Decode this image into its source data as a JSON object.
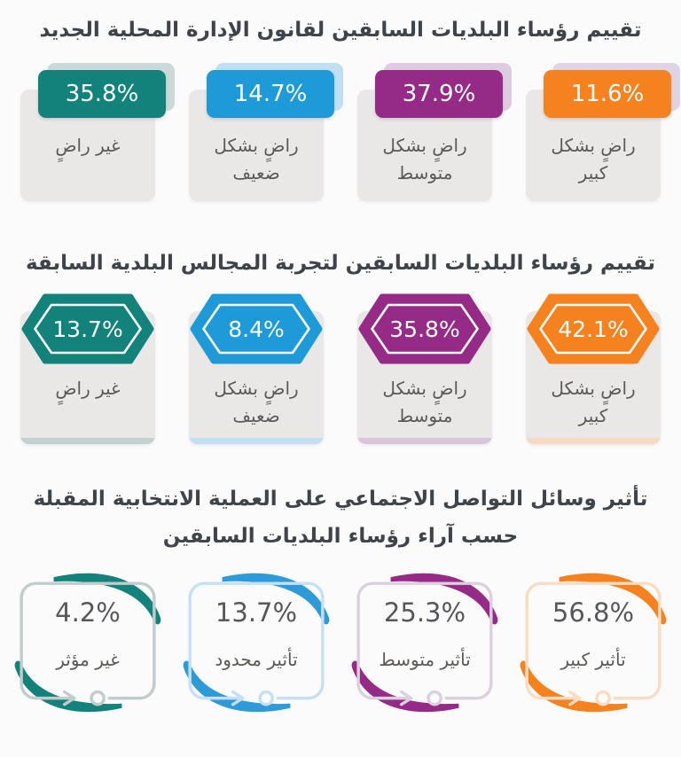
{
  "page": {
    "background": "#FBFBFC",
    "title_color": "#3E4449",
    "card_color": "#E9E8E6",
    "label_color": "#5C5A56",
    "value_text_color_row3": "#55575A",
    "icons": [
      "hexagon-badge-icon",
      "arrow-right-icon",
      "circle-node-icon",
      "corner-swoosh-icon"
    ]
  },
  "chart_data": [
    {
      "type": "bar",
      "style": "rounded-badge-cards",
      "title": "تقييم رؤساء البلديات السابقين لقانون الإدارة المحلية الجديد",
      "categories": [
        "راضٍ بشكل كبير",
        "راضٍ بشكل متوسط",
        "راضٍ بشكل ضعيف",
        "غير راضٍ"
      ],
      "values": [
        11.6,
        37.9,
        14.7,
        35.8
      ],
      "unit": "%"
    },
    {
      "type": "bar",
      "style": "hexagon-cards",
      "title": "تقييم رؤساء البلديات السابقين لتجربة المجالس البلدية السابقة",
      "categories": [
        "راضٍ بشكل كبير",
        "راضٍ بشكل متوسط",
        "راضٍ بشكل ضعيف",
        "غير راضٍ"
      ],
      "values": [
        42.1,
        35.8,
        8.4,
        13.7
      ],
      "unit": "%"
    },
    {
      "type": "bar",
      "style": "swoosh-frame-cards",
      "title": "تأثير وسائل التواصل الاجتماعي على العملية الانتخابية المقبلة حسب آراء رؤساء البلديات السابقين",
      "categories": [
        "تأثير كبير",
        "تأثير متوسط",
        "تأثير محدود",
        "غير مؤثر"
      ],
      "values": [
        56.8,
        25.3,
        13.7,
        4.2
      ],
      "unit": "%"
    }
  ],
  "sections": [
    {
      "title": "تقييم رؤساء البلديات السابقين لقانون الإدارة المحلية الجديد",
      "style": "badge",
      "items": [
        {
          "value": "11.6%",
          "label": "راضٍ بشكل كبير",
          "color": "#F5821F",
          "tint": "#DCCFE1"
        },
        {
          "value": "37.9%",
          "label": "راضٍ بشكل متوسط",
          "color": "#962B87",
          "tint": "#D9C6DD"
        },
        {
          "value": "14.7%",
          "label": "راضٍ بشكل ضعيف",
          "color": "#1D9AD7",
          "tint": "#B9DCF2"
        },
        {
          "value": "35.8%",
          "label": "غير راضٍ",
          "color": "#12827A",
          "tint": "#C6D5D4"
        }
      ]
    },
    {
      "title": "تقييم رؤساء البلديات السابقين لتجربة المجالس البلدية السابقة",
      "style": "hexagon",
      "items": [
        {
          "value": "42.1%",
          "label": "راضٍ بشكل كبير",
          "color": "#F5821F",
          "tint": "#F5D9C0"
        },
        {
          "value": "35.8%",
          "label": "راضٍ بشكل متوسط",
          "color": "#962B87",
          "tint": "#D8C7DB"
        },
        {
          "value": "8.4%",
          "label": "راضٍ بشكل ضعيف",
          "color": "#1D9AD7",
          "tint": "#C3E0F2"
        },
        {
          "value": "13.7%",
          "label": "غير راضٍ",
          "color": "#12827A",
          "tint": "#C2D2D1"
        }
      ]
    },
    {
      "title_line1": "تأثير وسائل التواصل الاجتماعي على العملية الانتخابية المقبلة",
      "title_line2": "حسب آراء رؤساء البلديات السابقين",
      "style": "frame",
      "items": [
        {
          "value": "56.8%",
          "label": "تأثير كبير",
          "color": "#F5821F",
          "tint": "#F8DCC4"
        },
        {
          "value": "25.3%",
          "label": "تأثير متوسط",
          "color": "#962B87",
          "tint": "#DCD0DE"
        },
        {
          "value": "13.7%",
          "label": "تأثير محدود",
          "color": "#2E9BD8",
          "tint": "#C4E0F4"
        },
        {
          "value": "4.2%",
          "label": "غير مؤثر",
          "color": "#12827A",
          "tint": "#C2CCCC"
        }
      ]
    }
  ]
}
